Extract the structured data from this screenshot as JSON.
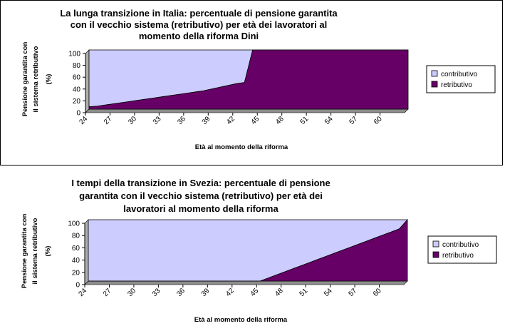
{
  "colors": {
    "contributivo": "#ccccff",
    "retributivo": "#660066",
    "frame": "#000000"
  },
  "chart_data": [
    {
      "type": "area",
      "stacked": true,
      "title_lines": [
        "La lunga transizione in Italia: percentuale di pensione garantita",
        "con il  vecchio sistema (retributivo) per età dei lavoratori al",
        "momento della riforma Dini"
      ],
      "ylabel_lines": [
        "Pensione garantita con",
        "il sistema retributivo",
        "(%)"
      ],
      "xlabel": "Età al momento della riforma",
      "x": [
        24,
        25,
        26,
        27,
        28,
        29,
        30,
        31,
        32,
        33,
        34,
        35,
        36,
        37,
        38,
        39,
        40,
        41,
        42,
        43,
        44,
        45,
        46,
        47,
        48,
        49,
        50,
        51,
        52,
        53,
        54,
        55,
        56,
        57,
        58,
        59,
        60,
        61,
        62,
        63
      ],
      "x_ticks": [
        "24",
        "27",
        "30",
        "33",
        "36",
        "39",
        "42",
        "45",
        "48",
        "51",
        "54",
        "57",
        "60"
      ],
      "y_ticks": [
        "0",
        "20",
        "40",
        "60",
        "80",
        "100"
      ],
      "ylim": [
        0,
        100
      ],
      "series": [
        {
          "name": "retributivo",
          "values": [
            4,
            5,
            7,
            9,
            11,
            13,
            15,
            17,
            19,
            21,
            23,
            25,
            27,
            29,
            31,
            34,
            37,
            40,
            43,
            45,
            100,
            100,
            100,
            100,
            100,
            100,
            100,
            100,
            100,
            100,
            100,
            100,
            100,
            100,
            100,
            100,
            100,
            100,
            100,
            100
          ]
        },
        {
          "name": "contributivo",
          "values": [
            96,
            95,
            93,
            91,
            89,
            87,
            85,
            83,
            81,
            79,
            77,
            75,
            73,
            71,
            69,
            66,
            63,
            60,
            57,
            55,
            0,
            0,
            0,
            0,
            0,
            0,
            0,
            0,
            0,
            0,
            0,
            0,
            0,
            0,
            0,
            0,
            0,
            0,
            0,
            0
          ]
        }
      ],
      "legend": [
        "contributivo",
        "retributivo"
      ],
      "legend_position": "right"
    },
    {
      "type": "area",
      "stacked": true,
      "title_lines": [
        "I tempi della transizione in Svezia: percentuale di pensione",
        "garantita con il  vecchio sistema (retributivo) per età dei",
        "lavoratori al momento della riforma"
      ],
      "ylabel_lines": [
        "Pensione garantita con",
        "il sistema retributivo",
        "(%)"
      ],
      "xlabel": "Età al momento della riforma",
      "x": [
        24,
        25,
        26,
        27,
        28,
        29,
        30,
        31,
        32,
        33,
        34,
        35,
        36,
        37,
        38,
        39,
        40,
        41,
        42,
        43,
        44,
        45,
        46,
        47,
        48,
        49,
        50,
        51,
        52,
        53,
        54,
        55,
        56,
        57,
        58,
        59,
        60,
        61,
        62,
        63
      ],
      "x_ticks": [
        "24",
        "27",
        "30",
        "33",
        "36",
        "39",
        "42",
        "45",
        "48",
        "51",
        "54",
        "57",
        "60"
      ],
      "y_ticks": [
        "0",
        "20",
        "40",
        "60",
        "80",
        "100"
      ],
      "ylim": [
        0,
        100
      ],
      "series": [
        {
          "name": "retributivo",
          "values": [
            0,
            0,
            0,
            0,
            0,
            0,
            0,
            0,
            0,
            0,
            0,
            0,
            0,
            0,
            0,
            0,
            0,
            0,
            0,
            0,
            0,
            0,
            5,
            10,
            15,
            20,
            25,
            30,
            35,
            40,
            45,
            50,
            55,
            60,
            65,
            70,
            75,
            80,
            85,
            100
          ]
        },
        {
          "name": "contributivo",
          "values": [
            100,
            100,
            100,
            100,
            100,
            100,
            100,
            100,
            100,
            100,
            100,
            100,
            100,
            100,
            100,
            100,
            100,
            100,
            100,
            100,
            100,
            100,
            95,
            90,
            85,
            80,
            75,
            70,
            65,
            60,
            55,
            50,
            45,
            40,
            35,
            30,
            25,
            20,
            15,
            0
          ]
        }
      ],
      "legend": [
        "contributivo",
        "retributivo"
      ],
      "legend_position": "right"
    }
  ]
}
